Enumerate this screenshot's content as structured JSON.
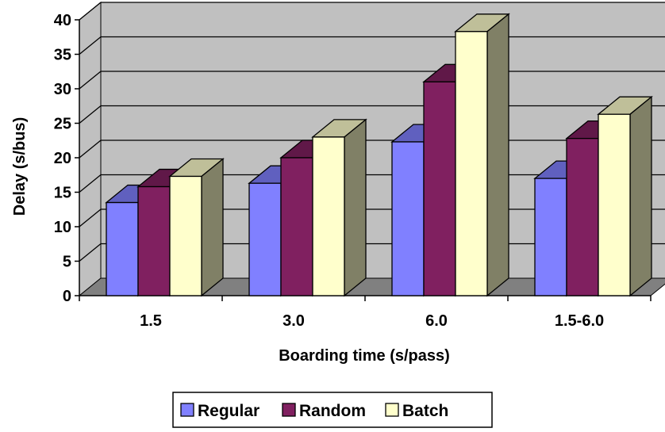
{
  "chart_data": {
    "type": "bar",
    "style": "3d-clustered-column",
    "title": "",
    "xlabel": "Boarding time (s/pass)",
    "ylabel": "Delay (s/bus)",
    "categories": [
      "1.5",
      "3.0",
      "6.0",
      "1.5-6.0"
    ],
    "ylim": [
      0,
      40
    ],
    "yticks": [
      "0",
      "5",
      "10",
      "15",
      "20",
      "25",
      "30",
      "35",
      "40"
    ],
    "grid": true,
    "legend_position": "bottom",
    "series": [
      {
        "name": "Regular",
        "values": [
          13.5,
          16.3,
          22.3,
          17.0
        ],
        "color": "#8080ff"
      },
      {
        "name": "Random",
        "values": [
          15.8,
          20.0,
          31.0,
          22.8
        ],
        "color": "#802060"
      },
      {
        "name": "Batch",
        "values": [
          17.3,
          23.0,
          38.3,
          26.3
        ],
        "color": "#ffffcc"
      }
    ],
    "colors": {
      "wall": "#c0c0c0",
      "floor": "#808080",
      "gridline": "#000000"
    }
  }
}
